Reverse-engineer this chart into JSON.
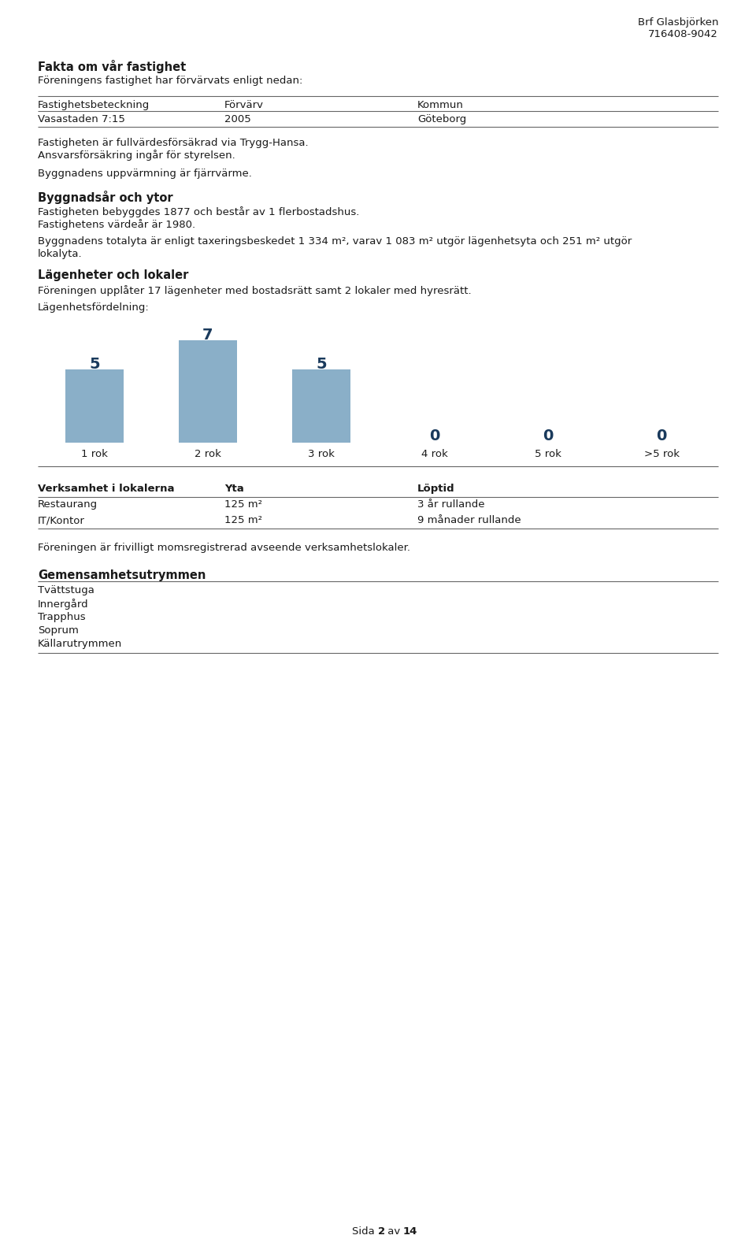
{
  "header_name": "Brf Glasbjörken",
  "header_number": "716408-9042",
  "section1_title": "Fakta om vår fastighet",
  "section1_intro": "Föreningens fastighet har förvärvats enligt nedan:",
  "table1_col_headers": [
    "Fastighetsbeteckning",
    "Förvärv",
    "Kommun"
  ],
  "table1_row": [
    "Vasastaden 7:15",
    "2005",
    "Göteborg"
  ],
  "para_insurance_1": "Fastigheten är fullvärdesförsäkrad via Trygg-Hansa.",
  "para_insurance_2": "Ansvarsförsäkring ingår för styrelsen.",
  "para_heating": "Byggnadens uppvärmning är fjärrvärme.",
  "section2_title": "Byggnadsår och ytor",
  "section2_text1": "Fastigheten bebyggdes 1877 och består av 1 flerbostadshus.",
  "section2_text2": "Fastighetens värdeår är 1980.",
  "section2_text3a": "Byggnadens totalyta är enligt taxeringsbeskedet 1 334 m², varav 1 083 m² utgör lägenhetsyta och 251 m² utgör",
  "section2_text3b": "lokalyta.",
  "section3_title": "Lägenheter och lokaler",
  "section3_text": "Föreningen upplåter 17 lägenheter med bostadsrätt samt 2 lokaler med hyresrätt.",
  "bar_label": "Lägenhetsfördelning:",
  "bar_categories": [
    "1 rok",
    "2 rok",
    "3 rok",
    "4 rok",
    "5 rok",
    ">5 rok"
  ],
  "bar_values": [
    5,
    7,
    5,
    0,
    0,
    0
  ],
  "bar_color": "#8aafc8",
  "bar_value_color": "#1a3a5c",
  "table2_headers": [
    "Verksamhet i lokalerna",
    "Yta",
    "Löptid"
  ],
  "table2_rows": [
    [
      "Restaurang",
      "125 m²",
      "3 år rullande"
    ],
    [
      "IT/Kontor",
      "125 m²",
      "9 månader rullande"
    ]
  ],
  "para_moms": "Föreningen är frivilligt momsregistrerad avseende verksamhetslokaler.",
  "section4_title": "Gemensamhetsutrymmen",
  "section4_items": [
    "Tvättstuga",
    "Innergård",
    "Trapphus",
    "Soprum",
    "Källarutrymmen"
  ],
  "bg_color": "#ffffff",
  "text_color": "#1a1a1a",
  "line_color": "#666666"
}
